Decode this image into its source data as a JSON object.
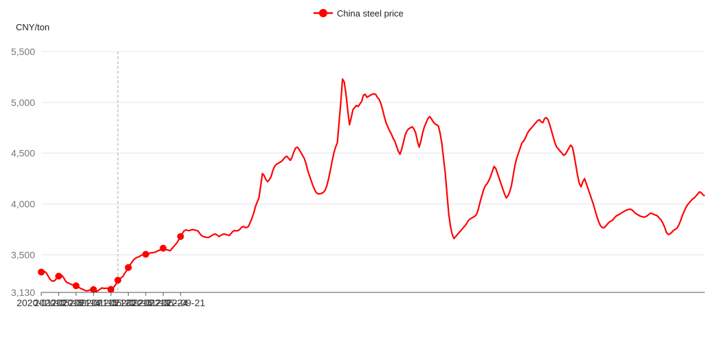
{
  "chart_data": {
    "type": "line",
    "y_unit_label": "CNY/ton",
    "legend": {
      "position": "top-center",
      "entries": [
        "China steel price"
      ]
    },
    "grid": true,
    "ylim": [
      3130,
      5500
    ],
    "y_ticks": [
      3130,
      3500,
      4000,
      4500,
      5000,
      5500
    ],
    "y_tick_labels": [
      "3,130",
      "3,500",
      "4,000",
      "4,500",
      "5,000",
      "5,500"
    ],
    "x_tick_labels": [
      "2020-01-10",
      "2020-05-18",
      "2020-09-14",
      "2021-01-15",
      "2021-05-20",
      "2021-09-16",
      "2022-01-19",
      "2022-05-24",
      "2022-09-21"
    ],
    "series": [
      {
        "name": "China steel price",
        "color": "#ff0000",
        "marker_indices": [
          0,
          10,
          20,
          30,
          40,
          50,
          60,
          70,
          80
        ],
        "values": [
          3330,
          3332,
          3335,
          3320,
          3290,
          3260,
          3245,
          3240,
          3250,
          3275,
          3290,
          3300,
          3295,
          3270,
          3240,
          3225,
          3220,
          3210,
          3205,
          3200,
          3195,
          3185,
          3175,
          3165,
          3160,
          3150,
          3145,
          3148,
          3155,
          3160,
          3158,
          3150,
          3140,
          3152,
          3165,
          3175,
          3168,
          3172,
          3170,
          3165,
          3160,
          3170,
          3190,
          3215,
          3250,
          3265,
          3275,
          3290,
          3320,
          3345,
          3375,
          3400,
          3425,
          3450,
          3465,
          3475,
          3480,
          3490,
          3500,
          3498,
          3505,
          3510,
          3515,
          3520,
          3520,
          3525,
          3530,
          3540,
          3545,
          3560,
          3565,
          3555,
          3550,
          3545,
          3540,
          3560,
          3580,
          3600,
          3620,
          3650,
          3680,
          3710,
          3735,
          3745,
          3740,
          3738,
          3745,
          3748,
          3745,
          3740,
          3735,
          3710,
          3690,
          3680,
          3675,
          3672,
          3670,
          3680,
          3690,
          3700,
          3705,
          3695,
          3680,
          3690,
          3700,
          3705,
          3700,
          3695,
          3690,
          3710,
          3730,
          3740,
          3735,
          3738,
          3750,
          3770,
          3780,
          3770,
          3768,
          3780,
          3820,
          3860,
          3910,
          3975,
          4020,
          4060,
          4180,
          4300,
          4280,
          4240,
          4220,
          4240,
          4270,
          4330,
          4370,
          4390,
          4400,
          4410,
          4420,
          4440,
          4460,
          4470,
          4450,
          4430,
          4460,
          4510,
          4550,
          4560,
          4540,
          4510,
          4480,
          4450,
          4400,
          4330,
          4280,
          4230,
          4180,
          4140,
          4110,
          4100,
          4100,
          4105,
          4115,
          4135,
          4180,
          4250,
          4330,
          4420,
          4500,
          4560,
          4600,
          4800,
          5000,
          5230,
          5200,
          5080,
          4920,
          4780,
          4850,
          4930,
          4950,
          4970,
          4960,
          4985,
          5010,
          5070,
          5080,
          5050,
          5060,
          5070,
          5080,
          5085,
          5080,
          5050,
          5030,
          4990,
          4930,
          4860,
          4800,
          4760,
          4720,
          4690,
          4650,
          4620,
          4570,
          4520,
          4490,
          4540,
          4610,
          4680,
          4720,
          4740,
          4750,
          4760,
          4740,
          4700,
          4620,
          4560,
          4620,
          4700,
          4760,
          4800,
          4840,
          4860,
          4840,
          4810,
          4790,
          4780,
          4770,
          4700,
          4600,
          4450,
          4300,
          4100,
          3900,
          3780,
          3700,
          3660,
          3680,
          3700,
          3720,
          3740,
          3760,
          3780,
          3800,
          3830,
          3850,
          3860,
          3870,
          3880,
          3900,
          3950,
          4020,
          4080,
          4140,
          4180,
          4200,
          4230,
          4270,
          4320,
          4370,
          4350,
          4300,
          4250,
          4200,
          4150,
          4100,
          4060,
          4080,
          4120,
          4180,
          4280,
          4380,
          4450,
          4500,
          4550,
          4600,
          4620,
          4650,
          4690,
          4720,
          4740,
          4760,
          4780,
          4800,
          4820,
          4830,
          4810,
          4800,
          4840,
          4850,
          4830,
          4780,
          4720,
          4660,
          4600,
          4560,
          4540,
          4520,
          4500,
          4480,
          4490,
          4520,
          4550,
          4580,
          4560,
          4480,
          4380,
          4280,
          4200,
          4170,
          4220,
          4250,
          4200,
          4150,
          4100,
          4050,
          4000,
          3940,
          3880,
          3830,
          3790,
          3770,
          3765,
          3780,
          3800,
          3820,
          3830,
          3840,
          3860,
          3880,
          3890,
          3900,
          3910,
          3920,
          3930,
          3940,
          3945,
          3950,
          3945,
          3930,
          3910,
          3900,
          3890,
          3880,
          3875,
          3870,
          3875,
          3885,
          3900,
          3910,
          3905,
          3895,
          3890,
          3880,
          3860,
          3840,
          3810,
          3770,
          3720,
          3700,
          3705,
          3720,
          3740,
          3750,
          3760,
          3790,
          3830,
          3880,
          3920,
          3960,
          3990,
          4010,
          4030,
          4050,
          4060,
          4080,
          4100,
          4120,
          4110,
          4090,
          4080
        ]
      }
    ]
  }
}
